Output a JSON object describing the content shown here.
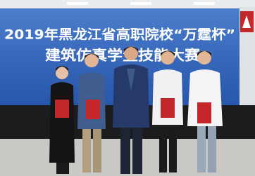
{
  "banner": {
    "line1": "2019年黑龙江省高职院校“万霆杯”",
    "line2": "建筑仿真学生技能大赛"
  }
}
